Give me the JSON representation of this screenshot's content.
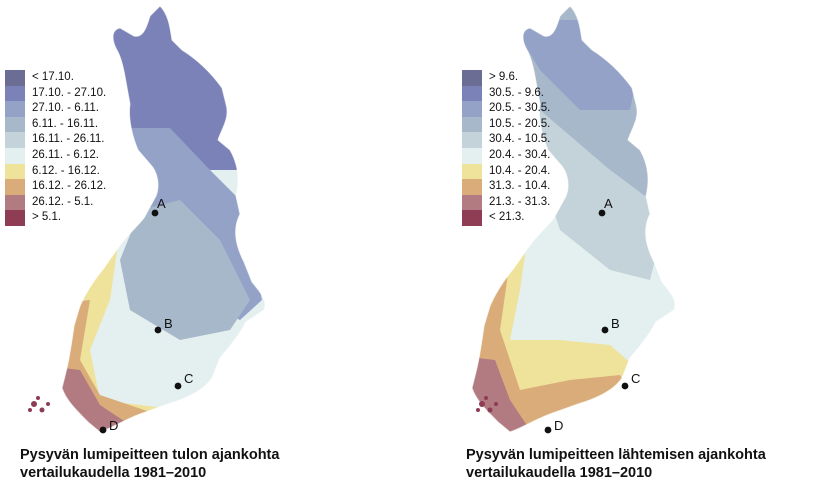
{
  "maps": [
    {
      "caption_line1": "Pysyvän lumipeitteen tulon ajankohta",
      "caption_line2": "vertailukaudella 1981–2010",
      "legend": [
        {
          "label": "< 17.10.",
          "color": "#6c6d95"
        },
        {
          "label": "17.10. - 27.10.",
          "color": "#7b82b8"
        },
        {
          "label": "27.10. - 6.11.",
          "color": "#93a2c6"
        },
        {
          "label": "6.11. - 16.11.",
          "color": "#a7b8cb"
        },
        {
          "label": "16.11. - 26.11.",
          "color": "#c4d3da"
        },
        {
          "label": "26.11. - 6.12.",
          "color": "#e4eff0"
        },
        {
          "label": "6.12. - 16.12.",
          "color": "#efe39b"
        },
        {
          "label": "16.12. - 26.12.",
          "color": "#d9ac7a"
        },
        {
          "label": "26.12. - 5.1.",
          "color": "#b27b82"
        },
        {
          "label": "> 5.1.",
          "color": "#8e3d55"
        }
      ],
      "markers": [
        "A",
        "B",
        "C",
        "D"
      ]
    },
    {
      "caption_line1": "Pysyvän lumipeitteen lähtemisen ajankohta",
      "caption_line2": "vertailukaudella 1981–2010",
      "legend": [
        {
          "label": "> 9.6.",
          "color": "#6c6d95"
        },
        {
          "label": "30.5. - 9.6.",
          "color": "#7b82b8"
        },
        {
          "label": "20.5. - 30.5.",
          "color": "#93a2c6"
        },
        {
          "label": "10.5. - 20.5.",
          "color": "#a7b8cb"
        },
        {
          "label": "30.4. - 10.5.",
          "color": "#c4d3da"
        },
        {
          "label": "20.4. - 30.4.",
          "color": "#e4eff0"
        },
        {
          "label": "10.4. - 20.4.",
          "color": "#efe39b"
        },
        {
          "label": "31.3. - 10.4.",
          "color": "#d9ac7a"
        },
        {
          "label": "21.3. - 31.3.",
          "color": "#b27b82"
        },
        {
          "label": "< 21.3.",
          "color": "#8e3d55"
        }
      ],
      "markers": [
        "A",
        "B",
        "C",
        "D"
      ]
    }
  ]
}
